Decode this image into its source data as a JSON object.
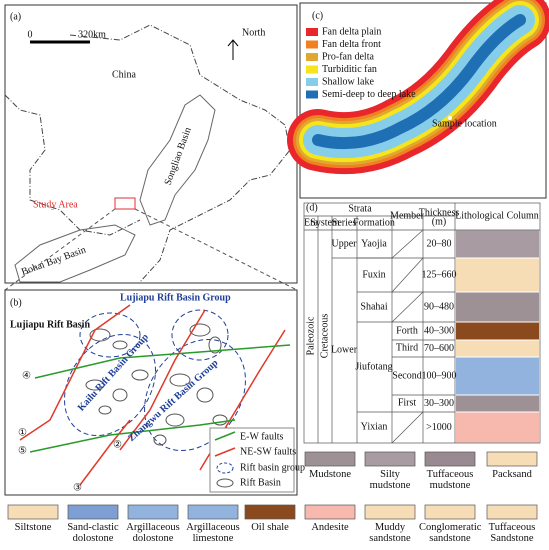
{
  "panel_a": {
    "label": "(a)",
    "scale": [
      "0",
      "320km"
    ],
    "north": "North",
    "country": "China",
    "basins": [
      "Songliao Basin",
      "Bohai Bay Basin"
    ],
    "study_area": "Study Area"
  },
  "panel_b": {
    "label": "(b)",
    "group_title": "Lujiapu Rift Basin Group",
    "basin_labels": [
      "Lujiapu Rift Basin",
      "Kailu Rift Basin Group",
      "Zhangwu Rift Basin Group"
    ],
    "fault_numbers": [
      "①",
      "②",
      "③",
      "④",
      "⑤"
    ],
    "legend": [
      "E-W faults",
      "NE-SW faults",
      "Rift basin group",
      "Rift Basin"
    ]
  },
  "panel_c": {
    "label": "(c)",
    "legend": [
      {
        "label": "Fan delta plain",
        "color": "#e8262b"
      },
      {
        "label": "Fan delta front",
        "color": "#f08020"
      },
      {
        "label": "Pro-fan delta",
        "color": "#e0a830"
      },
      {
        "label": "Turbiditic fan",
        "color": "#f6e51c"
      },
      {
        "label": "Shallow lake",
        "color": "#86cdea"
      },
      {
        "label": "Semi-deep to deep lake",
        "color": "#1f6fb5"
      }
    ],
    "sample_location": "Sample location"
  },
  "panel_d": {
    "label": "(d)",
    "header": {
      "strata": "Strata",
      "era": "Era",
      "system": "System",
      "series": "Series",
      "formation": "Formation",
      "member": "Member",
      "thickness": "Thickness",
      "thickness_unit": "(m)",
      "column": "Lithological Column"
    },
    "era": "Paleozoic",
    "system": "Cretaceous",
    "series": [
      "Upper",
      "Lower"
    ],
    "formations": [
      "Yaojia",
      "Fuxin",
      "Shahai",
      "Jiufotang",
      "Yixian"
    ],
    "members": [
      "Forth",
      "Third",
      "Second",
      "First"
    ],
    "thickness": [
      "20–80",
      "125–660",
      "90–480",
      "40–300",
      "70–600",
      "100–900",
      "30–300",
      ">1000"
    ]
  },
  "lithology_legend": [
    {
      "label": "Mudstone",
      "color": "#9e9196"
    },
    {
      "label": "Silty mudstone",
      "color": "#a89ca2"
    },
    {
      "label": "Tuffaceous mudstone",
      "color": "#988a90"
    },
    {
      "label": "Packsand",
      "color": "#f7ddb6"
    },
    {
      "label": "Siltstone",
      "color": "#f7ddb6"
    },
    {
      "label": "Sand-clastic dolostone",
      "color": "#7d9fd4"
    },
    {
      "label": "Argillaceous dolostone",
      "color": "#93b3df"
    },
    {
      "label": "Argillaceous limestone",
      "color": "#93b3df"
    },
    {
      "label": "Oil shale",
      "color": "#8b4a1e"
    },
    {
      "label": "Andesite",
      "color": "#f7b8ae"
    },
    {
      "label": "Muddy sandstone",
      "color": "#f7ddb6"
    },
    {
      "label": "Conglomeratic sandstone",
      "color": "#f7ddb6"
    },
    {
      "label": "Tuffaceous Sandstone",
      "color": "#f7ddb6"
    }
  ]
}
